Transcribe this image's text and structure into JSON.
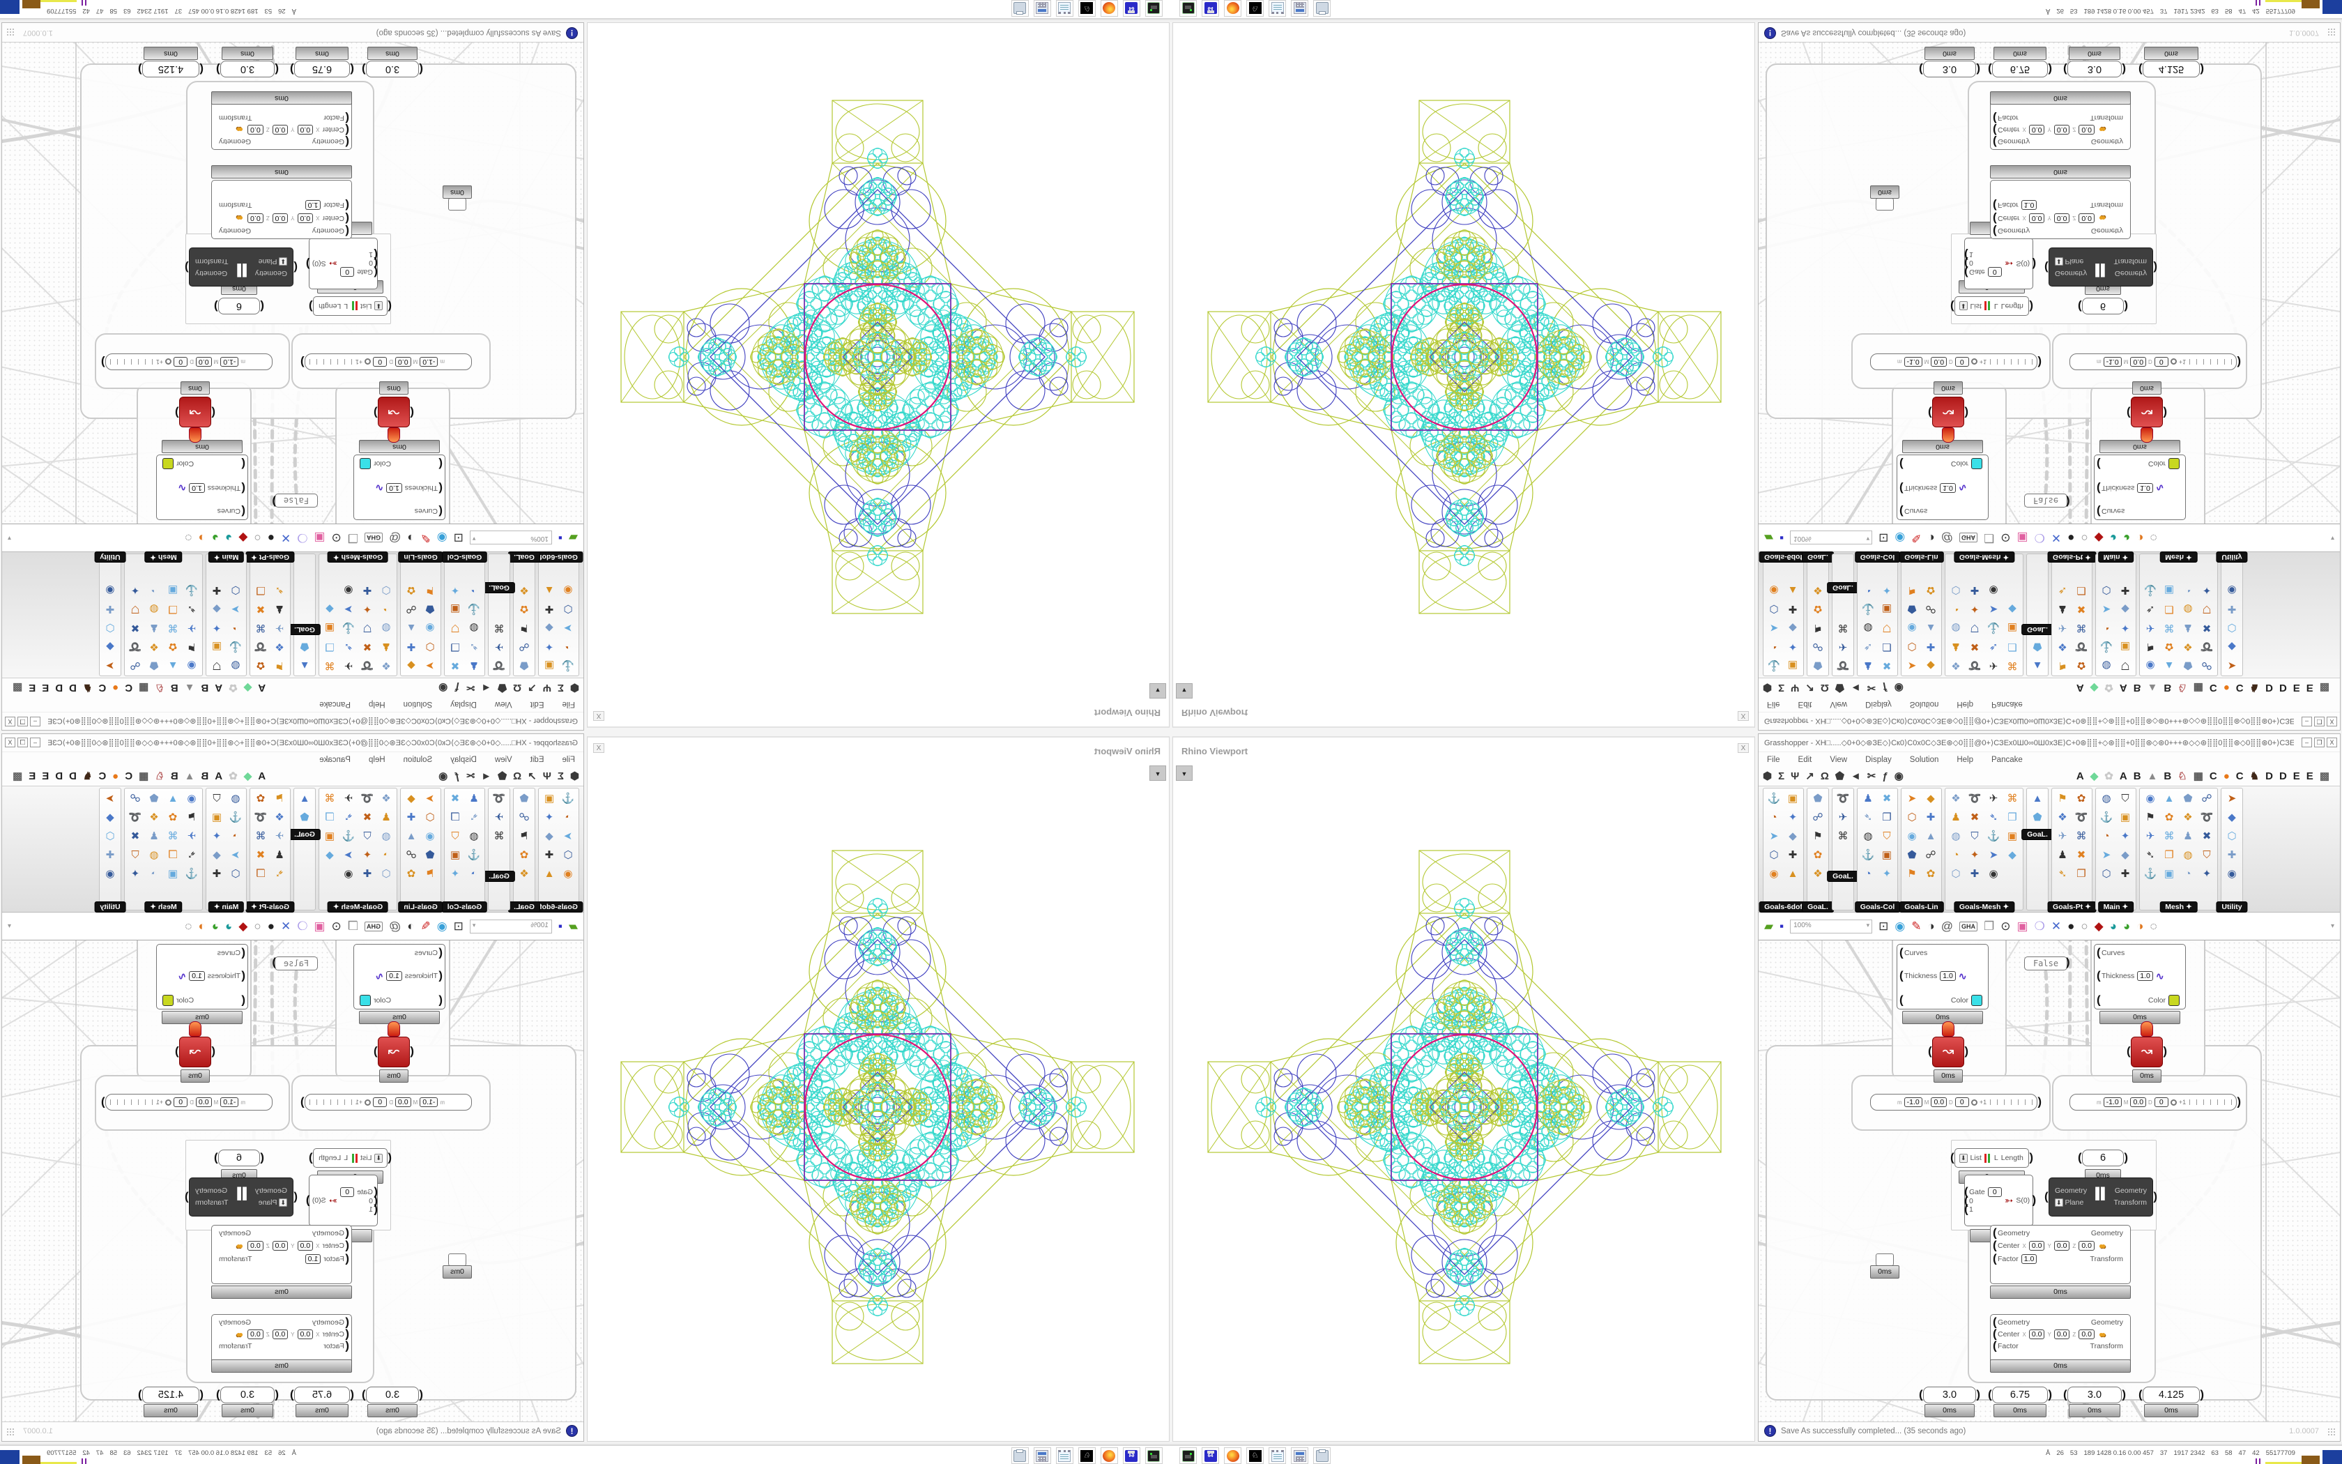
{
  "viewport": {
    "title": "Rhino Viewport",
    "close_label": "X",
    "drop_glyph": "▼",
    "colors": {
      "chartreuse": "#b4c832",
      "blue": "#4040c0",
      "cyan": "#35d8cc",
      "magenta": "#e01478",
      "purple": "#7a2fb0"
    }
  },
  "gh": {
    "title": "Grasshopper - XH□.....◇0+0◇⊛ЗЕ◇⟩Ск0⟩С0х0С◇ЗЕ⊛◇0⣿⣿@0+⟩СЗЕх0Ш0∞0Ш0хЗЕ⟩С+0⊛⣿⣿+◇⊛⣿⣿+0⣿⣿⊛◇⊛0+++⊛◇◇⊛⣿⣿0⣿⣿⊛◇0⣿⣿⊛0+⟩СЗЕх0Ш0∞0...",
    "winbtns": {
      "min": "–",
      "max": "❒",
      "close": "X"
    },
    "menu": [
      "File",
      "Edit",
      "View",
      "Display",
      "Solution",
      "Help",
      "Pancake"
    ],
    "tabs_left": [
      {
        "name": "tab-params",
        "g": "⬢",
        "c": "#3a3a3a"
      },
      {
        "name": "tab-maths",
        "g": "Σ",
        "c": "#3a3a3a"
      },
      {
        "name": "tab-sets",
        "g": "Ψ",
        "c": "#3a3a3a"
      },
      {
        "name": "tab-vector",
        "g": "↗",
        "c": "#3a3a3a"
      },
      {
        "name": "tab-curve",
        "g": "Ω",
        "c": "#3a3a3a"
      },
      {
        "name": "tab-surface",
        "g": "⬟",
        "c": "#3a3a3a"
      },
      {
        "name": "tab-mesh",
        "g": "◄",
        "c": "#3a3a3a"
      },
      {
        "name": "tab-intersect",
        "g": "✂",
        "c": "#3a3a3a"
      },
      {
        "name": "tab-transform",
        "g": "ƒ",
        "c": "#3a3a3a"
      },
      {
        "name": "tab-display",
        "g": "◉",
        "c": "#3a3a3a"
      }
    ],
    "tabs_right": [
      {
        "name": "tab-a1",
        "g": "A",
        "c": "#222"
      },
      {
        "name": "tab-gem",
        "g": "◆",
        "c": "#6fd898"
      },
      {
        "name": "tab-blob",
        "g": "✿",
        "c": "#c9c9c9"
      },
      {
        "name": "tab-a2",
        "g": "A",
        "c": "#222"
      },
      {
        "name": "tab-b1",
        "g": "B",
        "c": "#222"
      },
      {
        "name": "tab-mountain",
        "g": "▲",
        "c": "#8a8a8a"
      },
      {
        "name": "tab-b2",
        "g": "B",
        "c": "#222"
      },
      {
        "name": "tab-shield",
        "g": "♘",
        "c": "#b05050"
      },
      {
        "name": "tab-grid",
        "g": "▦",
        "c": "#555"
      },
      {
        "name": "tab-c1",
        "g": "C",
        "c": "#222"
      },
      {
        "name": "tab-orange",
        "g": "●",
        "c": "#e87818"
      },
      {
        "name": "tab-c2",
        "g": "C",
        "c": "#222"
      },
      {
        "name": "tab-bird",
        "g": "♞",
        "c": "#402818"
      },
      {
        "name": "tab-d1",
        "g": "D",
        "c": "#222"
      },
      {
        "name": "tab-d2",
        "g": "D",
        "c": "#222"
      },
      {
        "name": "tab-e1",
        "g": "E",
        "c": "#222"
      },
      {
        "name": "tab-e2",
        "g": "E",
        "c": "#222"
      },
      {
        "name": "tab-dots",
        "g": "▩",
        "c": "#666"
      }
    ],
    "dock_panels": [
      {
        "label": "Goals-6dof",
        "cols": 2,
        "count": 10,
        "arrow": false
      },
      {
        "label": "GoaL.",
        "cols": 1,
        "count": 5,
        "arrow": false
      },
      {
        "label": "GoaL.",
        "cols": 1,
        "count": 3,
        "arrow": false,
        "floating": 118
      },
      {
        "label": "Goals-Col",
        "cols": 2,
        "count": 10,
        "arrow": false
      },
      {
        "label": "Goals-Lin",
        "cols": 2,
        "count": 10,
        "arrow": false
      },
      {
        "label": "Goals-Mesh",
        "cols": 4,
        "count": 19,
        "arrow": true
      },
      {
        "label": "GoaL.",
        "cols": 1,
        "count": 3,
        "arrow": false,
        "floating": 58
      },
      {
        "label": "Goals-Pt",
        "cols": 2,
        "count": 10,
        "arrow": true
      },
      {
        "label": "Main",
        "cols": 2,
        "count": 10,
        "arrow": true
      },
      {
        "label": "Mesh",
        "cols": 4,
        "count": 20,
        "arrow": true
      },
      {
        "label": "Utility",
        "cols": 1,
        "count": 5,
        "arrow": false
      }
    ],
    "icon_palette": {
      "glyphs": [
        "⚓",
        "▣",
        "◔",
        "✦",
        "➤",
        "◆",
        "⬡",
        "✚",
        "◉",
        "▲",
        "⬟",
        "☍",
        "⚑",
        "✿",
        "❖",
        "➰",
        "✈",
        "⌘",
        "♟",
        "✖",
        "➴",
        "❐",
        "◍",
        "⛉"
      ],
      "colors": [
        "#e08020",
        "#4a78c8",
        "#355a9a",
        "#d89020",
        "#66aadd",
        "#333333",
        "#c06018",
        "#7a9cc8"
      ]
    },
    "toolbar": {
      "zoom": "100%",
      "icons": [
        {
          "name": "open-file-icon",
          "g": "▰",
          "c": "#55a020"
        },
        {
          "name": "save-file-icon",
          "g": "▪",
          "c": "#2a2ac8"
        },
        {
          "name": "zoom-extents-icon",
          "g": "⊡",
          "c": "#333"
        },
        {
          "name": "preview-eye-icon",
          "g": "◉",
          "c": "#38a0d8"
        },
        {
          "name": "draw-brush-icon",
          "g": "✎",
          "c": "#cc2020"
        },
        {
          "name": "sphere-shade-icon",
          "g": "◑",
          "c": "#333"
        },
        {
          "name": "link-icon",
          "g": "@",
          "c": "#555"
        },
        {
          "name": "gha-icon",
          "g": "GHA",
          "c": "#333"
        },
        {
          "name": "document-icon",
          "g": "❐",
          "c": "#888"
        },
        {
          "name": "search-icon",
          "g": "⊙",
          "c": "#333"
        },
        {
          "name": "gift-icon",
          "g": "▣",
          "c": "#e060a0"
        },
        {
          "name": "bulb-icon",
          "g": "❍",
          "c": "#a898e8"
        },
        {
          "name": "wires-icon",
          "g": "✕",
          "c": "#4466cc"
        },
        {
          "name": "ball-dark-icon",
          "g": "●",
          "c": "#222"
        },
        {
          "name": "ball-light-icon",
          "g": "○",
          "c": "#888"
        },
        {
          "name": "gem-red-icon",
          "g": "◆",
          "c": "#b01212"
        },
        {
          "name": "ribbon-teal-icon",
          "g": "◕",
          "c": "#1a9a9a"
        },
        {
          "name": "ribbon-green-icon",
          "g": "◕",
          "c": "#3aa02c"
        },
        {
          "name": "half-ball-icon",
          "g": "◑",
          "c": "#e07820"
        },
        {
          "name": "selection-icon",
          "g": "◌",
          "c": "#666"
        }
      ]
    },
    "canvas": {
      "preview1": {
        "in1": "Curves",
        "in2": "Thickness",
        "in3": "Color",
        "thickness": "1.0",
        "swatch": "#3ae0e8",
        "squig": "∿",
        "time": "0ms"
      },
      "preview2": {
        "in1": "Curves",
        "in2": "Thickness",
        "in3": "Color",
        "thickness": "1.0",
        "swatch": "#c8d820",
        "squig": "∿",
        "time": "0ms"
      },
      "toggle": {
        "label": "False"
      },
      "red1": {
        "glyph": "↝",
        "time": "0ms"
      },
      "red2": {
        "glyph": "↝",
        "time": "0ms"
      },
      "md1": {
        "m_label": "m",
        "m": "-1.0",
        "M_label": "M",
        "M": "0.0",
        "D_label": "D",
        "D": "0",
        "mark": "+1"
      },
      "md2": {
        "m_label": "m",
        "m": "-1.0",
        "M_label": "M",
        "M": "0.0",
        "D_label": "D",
        "D": "0",
        "mark": "+1"
      },
      "list_length": {
        "di": "⬇",
        "in": "List",
        "bars": "",
        "mid": "L",
        "out": "Length",
        "time": "0ms"
      },
      "panel6": {
        "value": "6",
        "time": "0ms"
      },
      "gate": {
        "g_label": "Gate",
        "g": "0",
        "in1": "0",
        "in2": "1",
        "glyph": "➳",
        "out": "S(0)",
        "time": "0ms"
      },
      "orient": {
        "di": "⬇",
        "in1": "Geometry",
        "in2": "Plane",
        "pause": "▐▌",
        "out1": "Geometry",
        "out2": "Transform"
      },
      "scale1": {
        "in1": "Geometry",
        "c_label": "Center",
        "x_label": "X",
        "x": "0.0",
        "y_label": "Y",
        "y": "0.0",
        "z_label": "Z",
        "z": "0.0",
        "balls": "●●",
        "f_label": "Factor",
        "f": "1.0",
        "out1": "Geometry",
        "out2": "Transform",
        "time": "0ms"
      },
      "scale2": {
        "in1": "Geometry",
        "c_label": "Center",
        "x_label": "X",
        "x": "0.0",
        "y_label": "Y",
        "y": "0.0",
        "z_label": "Z",
        "z": "0.0",
        "balls": "●●",
        "f_label": "Factor",
        "out1": "Geometry",
        "out2": "Transform",
        "time": "0ms"
      },
      "tiny": {
        "time": "0ms"
      },
      "slider1": {
        "value": "3.0",
        "time": "0ms"
      },
      "slider2": {
        "value": "6.75",
        "time": "0ms"
      },
      "slider3": {
        "value": "3.0",
        "time": "0ms"
      },
      "slider4": {
        "value": "4.125",
        "time": "0ms"
      }
    },
    "status": {
      "icon": "!",
      "text": "Save As successfully completed... (35 seconds ago)",
      "version": "1.0.0007"
    }
  },
  "taskbar": {
    "apps": [
      "device-icon",
      "floppy-64-icon",
      "firefox-icon",
      "rhino-icon",
      "notepad-icon",
      "calculator-icon",
      "printer-icon"
    ],
    "floppy_label": "64",
    "rhino_glyph": "♘",
    "tray_glyph": "Å",
    "numbers": [
      "26",
      "53",
      "189 1428 0.16 0.00 457",
      "37",
      "1917 2342",
      "63",
      "58",
      "47",
      "42",
      "55177709"
    ],
    "block_colors": {
      "ticks": "#7a1fa0",
      "yellow": "#e8e84a",
      "brown1": "#8a5a18",
      "blue": "#1c3f9e",
      "brown2": "#9a5a14",
      "green": "#44cc44",
      "red": "#8e1212"
    }
  }
}
